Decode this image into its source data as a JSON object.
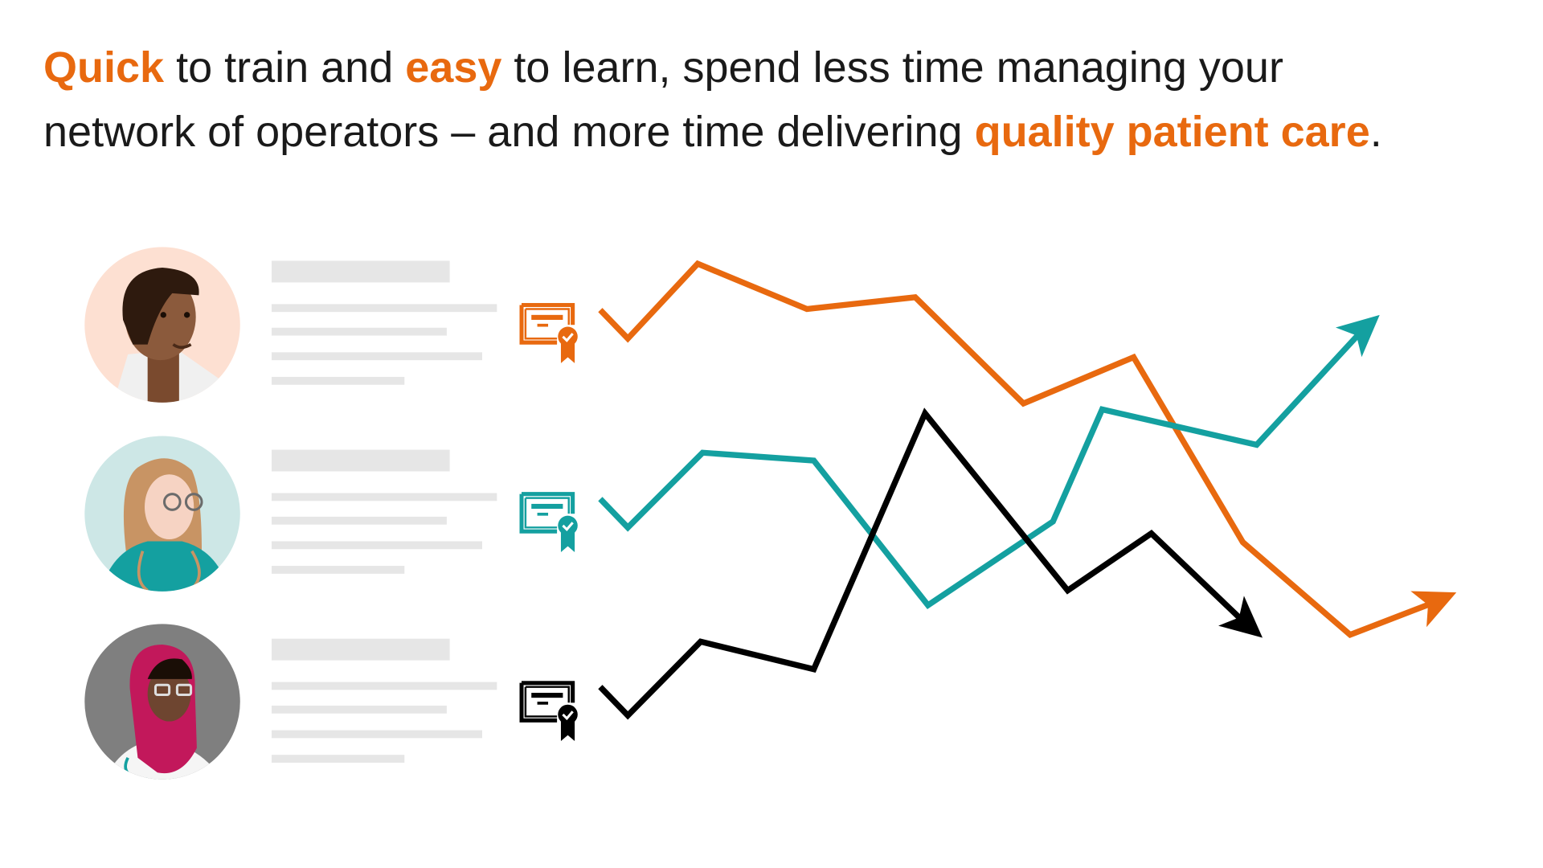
{
  "headline": {
    "line1": [
      {
        "text": "Quick",
        "highlight": true
      },
      {
        "text": " to train and ",
        "highlight": false
      },
      {
        "text": "easy",
        "highlight": true
      },
      {
        "text": " to learn, spend less time managing your",
        "highlight": false
      }
    ],
    "line2": [
      {
        "text": "network of operators – and more time delivering ",
        "highlight": false
      },
      {
        "text": "quality patient care",
        "highlight": true
      },
      {
        "text": ".",
        "highlight": false
      }
    ]
  },
  "colors": {
    "accent": "#e8690f",
    "teal": "#14a0a0",
    "black": "#000000",
    "placeholder": "#e6e6e6"
  },
  "operators": [
    {
      "avatar": "male-doctor-avatar",
      "bg": "#fde0d2",
      "certificate_icon": "certificate-check-icon",
      "color": "#e8690f"
    },
    {
      "avatar": "female-doctor-glasses-avatar",
      "bg": "#cde7e6",
      "certificate_icon": "certificate-check-icon",
      "color": "#14a0a0"
    },
    {
      "avatar": "hijab-doctor-avatar",
      "bg": "#7f7f7f",
      "certificate_icon": "certificate-check-icon",
      "color": "#000000"
    }
  ]
}
